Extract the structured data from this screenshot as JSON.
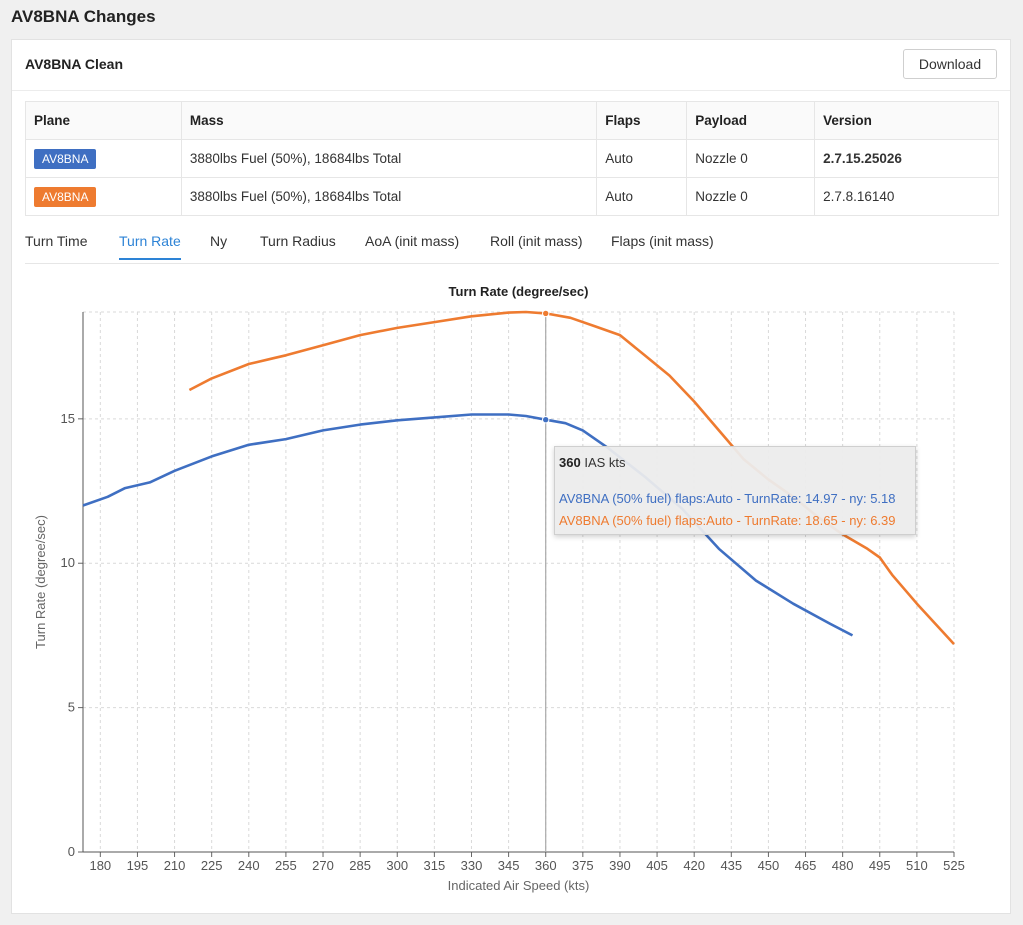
{
  "page": {
    "title": "AV8BNA Changes"
  },
  "card": {
    "title": "AV8BNA Clean",
    "download_label": "Download"
  },
  "table": {
    "headers": [
      "Plane",
      "Mass",
      "Flaps",
      "Payload",
      "Version"
    ],
    "rows": [
      {
        "plane": "AV8BNA",
        "plane_color": "#3f6fc2",
        "mass": "3880lbs Fuel (50%), 18684lbs Total",
        "flaps": "Auto",
        "payload": "Nozzle 0",
        "version": "2.7.15.25026",
        "version_bold": true
      },
      {
        "plane": "AV8BNA",
        "plane_color": "#ee7b30",
        "mass": "3880lbs Fuel (50%), 18684lbs Total",
        "flaps": "Auto",
        "payload": "Nozzle 0",
        "version": "2.7.8.16140",
        "version_bold": false
      }
    ]
  },
  "tabs": [
    {
      "label": "Turn Time",
      "active": false
    },
    {
      "label": "Turn Rate",
      "active": true
    },
    {
      "label": "Ny",
      "active": false
    },
    {
      "label": "Turn Radius",
      "active": false
    },
    {
      "label": "AoA (init mass)",
      "active": false
    },
    {
      "label": "Roll (init mass)",
      "active": false
    },
    {
      "label": "Flaps (init mass)",
      "active": false
    }
  ],
  "tooltip": {
    "speed": "360",
    "speed_unit": "IAS kts",
    "rows": [
      {
        "text": "AV8BNA (50% fuel) flaps:Auto - TurnRate: 14.97 - ny: 5.18",
        "color": "#3f6fc2"
      },
      {
        "text": "AV8BNA (50% fuel) flaps:Auto - TurnRate: 18.65 - ny: 6.39",
        "color": "#ee7b30"
      }
    ]
  },
  "chart_data": {
    "type": "line",
    "title": "Turn Rate (degree/sec)",
    "xlabel": "Indicated Air Speed (kts)",
    "ylabel": "Turn Rate (degree/sec)",
    "xlim": [
      173,
      525
    ],
    "ylim": [
      0,
      18.7
    ],
    "x_ticks": [
      180,
      195,
      210,
      225,
      240,
      255,
      270,
      285,
      300,
      315,
      330,
      345,
      360,
      375,
      390,
      405,
      420,
      435,
      450,
      465,
      480,
      495,
      510,
      525
    ],
    "y_ticks": [
      0,
      5,
      10,
      15
    ],
    "grid": true,
    "cursor_x": 360,
    "series": [
      {
        "name": "AV8BNA (50% fuel) flaps:Auto",
        "color": "#3f6fc2",
        "x": [
          173,
          183,
          190,
          200,
          210,
          225,
          240,
          255,
          270,
          285,
          300,
          315,
          330,
          345,
          352,
          360,
          368,
          375,
          385,
          400,
          415,
          430,
          445,
          460,
          475,
          484
        ],
        "y": [
          12.0,
          12.3,
          12.6,
          12.8,
          13.2,
          13.7,
          14.1,
          14.3,
          14.6,
          14.8,
          14.95,
          15.05,
          15.15,
          15.15,
          15.1,
          14.97,
          14.85,
          14.6,
          14.0,
          13.0,
          11.9,
          10.5,
          9.4,
          8.6,
          7.9,
          7.5
        ]
      },
      {
        "name": "AV8BNA (50% fuel) flaps:Auto",
        "color": "#ee7b30",
        "x": [
          216,
          225,
          240,
          250,
          255,
          270,
          285,
          300,
          315,
          330,
          345,
          352,
          360,
          370,
          380,
          390,
          400,
          410,
          420,
          430,
          440,
          450,
          460,
          470,
          480,
          490,
          495,
          500,
          510,
          525
        ],
        "y": [
          16.0,
          16.4,
          16.9,
          17.1,
          17.2,
          17.55,
          17.9,
          18.15,
          18.35,
          18.55,
          18.68,
          18.7,
          18.65,
          18.5,
          18.2,
          17.9,
          17.2,
          16.5,
          15.6,
          14.6,
          13.6,
          12.9,
          12.3,
          11.6,
          11.0,
          10.5,
          10.2,
          9.6,
          8.6,
          7.2
        ]
      }
    ]
  }
}
